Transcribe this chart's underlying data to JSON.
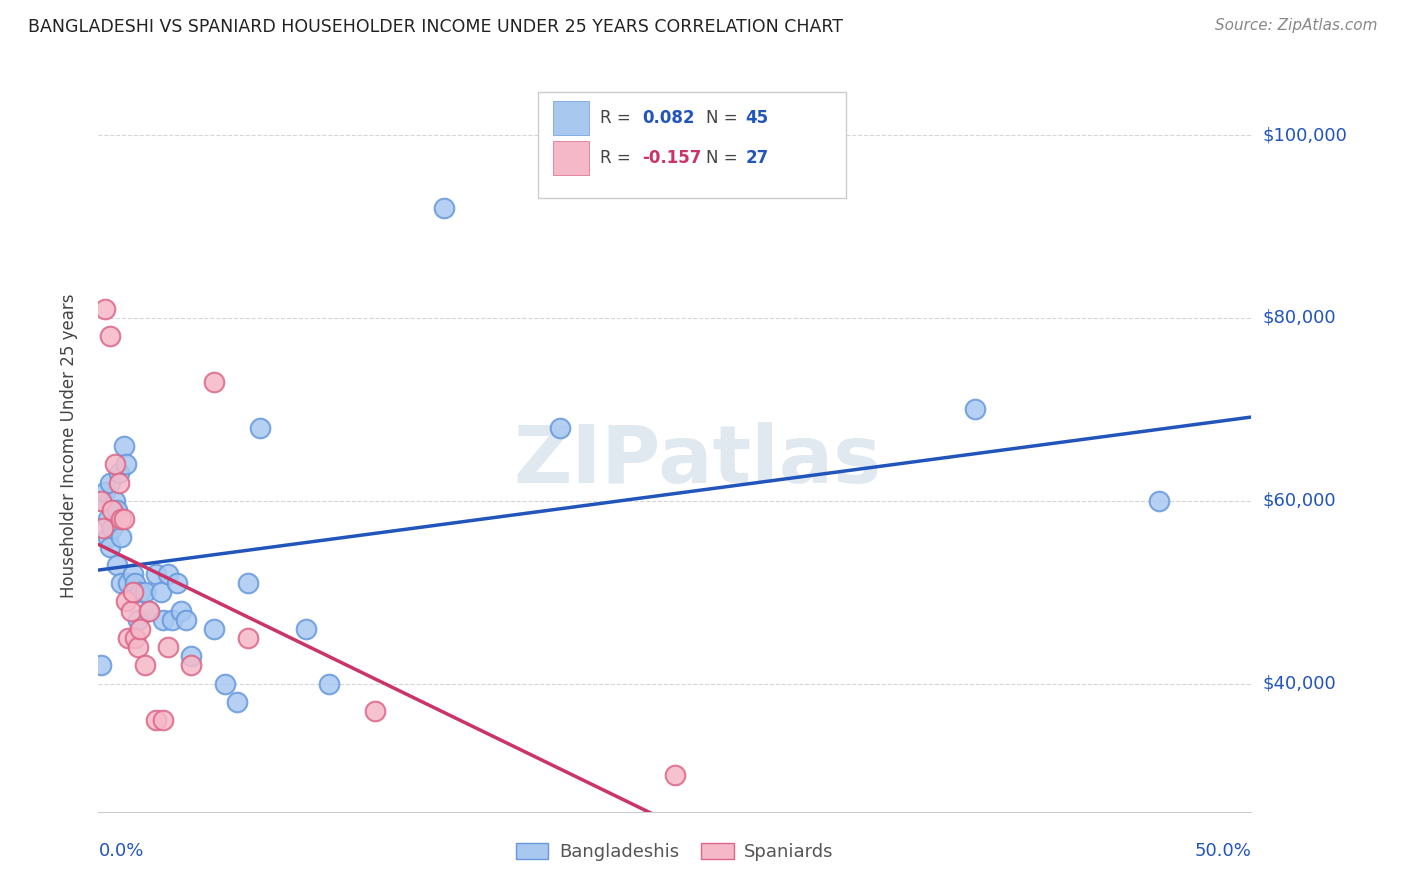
{
  "title": "BANGLADESHI VS SPANIARD HOUSEHOLDER INCOME UNDER 25 YEARS CORRELATION CHART",
  "source": "Source: ZipAtlas.com",
  "ylabel": "Householder Income Under 25 years",
  "legend_bangladeshi": "Bangladeshis",
  "legend_spaniard": "Spaniards",
  "ytick_labels": [
    "$40,000",
    "$60,000",
    "$80,000",
    "$100,000"
  ],
  "ytick_values": [
    40000,
    60000,
    80000,
    100000
  ],
  "xlim": [
    0.0,
    0.5
  ],
  "ylim": [
    26000,
    106000
  ],
  "blue_color": "#a8c8f0",
  "blue_edge_color": "#6699dd",
  "pink_color": "#f5b8c8",
  "pink_edge_color": "#dd6688",
  "blue_line_color": "#2255bb",
  "pink_line_color": "#cc3366",
  "background_color": "#ffffff",
  "watermark": "ZIPatlas",
  "watermark_color": "#e0e8f0",
  "bangladeshi_x": [
    0.001,
    0.002,
    0.003,
    0.004,
    0.004,
    0.005,
    0.005,
    0.006,
    0.007,
    0.008,
    0.008,
    0.009,
    0.01,
    0.01,
    0.011,
    0.012,
    0.013,
    0.015,
    0.016,
    0.017,
    0.018,
    0.02,
    0.022,
    0.025,
    0.027,
    0.028,
    0.03,
    0.032,
    0.034,
    0.036,
    0.038,
    0.04,
    0.05,
    0.055,
    0.06,
    0.065,
    0.07,
    0.09,
    0.1,
    0.15,
    0.2,
    0.38,
    0.46
  ],
  "bangladeshi_y": [
    42000,
    60000,
    61000,
    58000,
    56000,
    55000,
    62000,
    57000,
    60000,
    59000,
    53000,
    63000,
    56000,
    51000,
    66000,
    64000,
    51000,
    52000,
    51000,
    47000,
    50000,
    50000,
    48000,
    52000,
    50000,
    47000,
    52000,
    47000,
    51000,
    48000,
    47000,
    43000,
    46000,
    40000,
    38000,
    51000,
    68000,
    46000,
    40000,
    92000,
    68000,
    70000,
    60000
  ],
  "spaniard_x": [
    0.001,
    0.002,
    0.003,
    0.005,
    0.006,
    0.007,
    0.009,
    0.01,
    0.011,
    0.012,
    0.013,
    0.014,
    0.015,
    0.016,
    0.017,
    0.018,
    0.02,
    0.022,
    0.025,
    0.028,
    0.03,
    0.04,
    0.05,
    0.065,
    0.12,
    0.25
  ],
  "spaniard_y": [
    60000,
    57000,
    81000,
    78000,
    59000,
    64000,
    62000,
    58000,
    58000,
    49000,
    45000,
    48000,
    50000,
    45000,
    44000,
    46000,
    42000,
    48000,
    36000,
    36000,
    44000,
    42000,
    73000,
    45000,
    37000,
    30000
  ],
  "blue_r": "0.082",
  "blue_n": "45",
  "pink_r": "-0.157",
  "pink_n": "27"
}
